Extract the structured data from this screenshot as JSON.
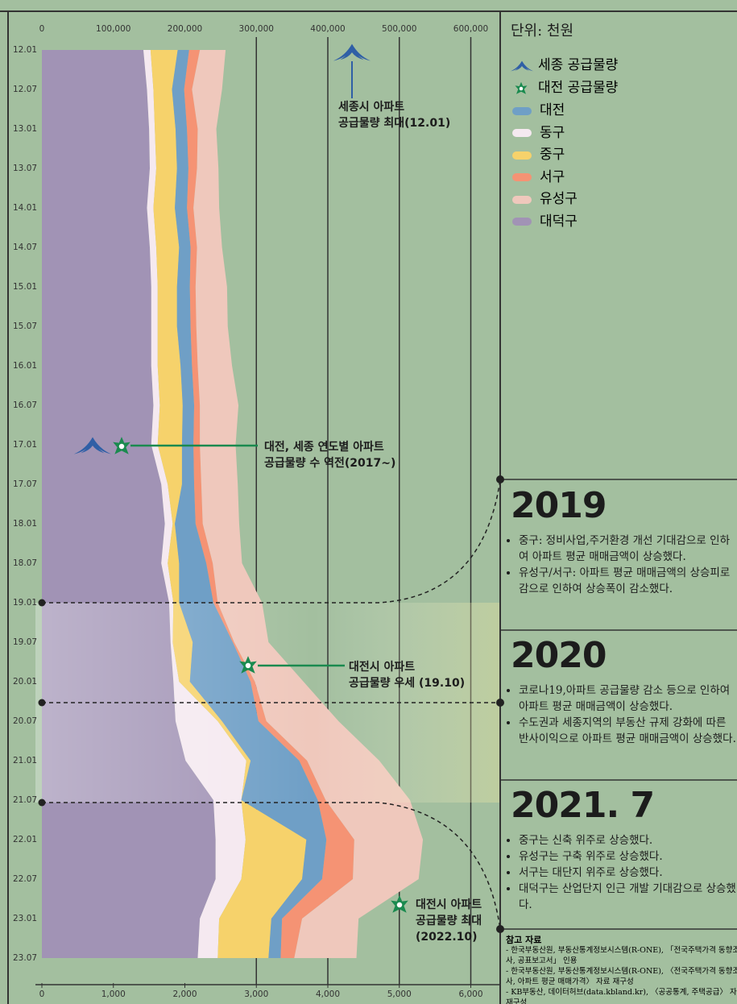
{
  "chart_data": {
    "type": "stacked_area",
    "unit_label": "단위: 천원",
    "categories": [
      "12.01",
      "12.07",
      "13.01",
      "13.07",
      "14.01",
      "14.07",
      "15.01",
      "15.07",
      "16.01",
      "16.07",
      "17.01",
      "17.07",
      "18.01",
      "18.07",
      "19.01",
      "19.07",
      "20.01",
      "20.07",
      "21.01",
      "21.07",
      "22.01",
      "22.07",
      "23.01",
      "23.07"
    ],
    "xlim": [
      0,
      640000
    ],
    "xticks": [
      0,
      {
        "value": 100000,
        "label": "100,000"
      },
      {
        "value": 200000,
        "label": "200,000"
      },
      {
        "value": 300000,
        "label": "300,000"
      },
      {
        "value": 400000,
        "label": "400,000"
      },
      {
        "value": 500000,
        "label": "500,000"
      },
      {
        "value": 600000,
        "label": "600,000"
      }
    ],
    "x2lim": [
      0,
      6400
    ],
    "x2ticks": [
      0,
      {
        "value": 1000,
        "label": "1,000"
      },
      {
        "value": 2000,
        "label": "2,000"
      },
      {
        "value": 3000,
        "label": "3,000"
      },
      {
        "value": 4000,
        "label": "4,000"
      },
      {
        "value": 5000,
        "label": "5,000"
      },
      {
        "value": 6000,
        "label": "6,000"
      }
    ],
    "legend_markers": [
      "세종 공급물량",
      "대전 공급물량"
    ],
    "series": [
      {
        "name": "대전",
        "color": "#6f9fc6",
        "values": [
          16000,
          17000,
          16000,
          16000,
          17000,
          16000,
          18000,
          19000,
          16000,
          16000,
          16000,
          17000,
          29000,
          38000,
          48000,
          56000,
          85000,
          51000,
          68000,
          107000,
          28000,
          28000,
          15000,
          17000
        ]
      },
      {
        "name": "동구",
        "color": "#f5e9f0",
        "values": [
          10000,
          9000,
          8000,
          9000,
          9000,
          9000,
          9000,
          9000,
          9000,
          9000,
          9000,
          9000,
          11000,
          9000,
          6000,
          3000,
          8000,
          59000,
          85000,
          39000,
          42000,
          36000,
          27000,
          28000
        ]
      },
      {
        "name": "중구",
        "color": "#f6d26b",
        "values": [
          38000,
          26000,
          29000,
          29000,
          30000,
          32000,
          27000,
          27000,
          32000,
          32000,
          34000,
          20000,
          3000,
          16000,
          8000,
          28000,
          15000,
          6000,
          6000,
          0,
          85000,
          85000,
          73000,
          71000
        ]
      },
      {
        "name": "서구",
        "color": "#f59374",
        "values": [
          15000,
          11000,
          15000,
          12000,
          9000,
          9000,
          8000,
          8000,
          8000,
          8000,
          9000,
          10000,
          10000,
          9000,
          6000,
          2000,
          6000,
          11000,
          11000,
          11000,
          39000,
          43000,
          28000,
          19000
        ]
      },
      {
        "name": "유성구",
        "color": "#efc8bc",
        "values": [
          36000,
          42000,
          26000,
          30000,
          36000,
          35000,
          44000,
          44000,
          48000,
          54000,
          50000,
          51000,
          51000,
          41000,
          62000,
          48000,
          68000,
          101000,
          101000,
          118000,
          96000,
          92000,
          79000,
          87000
        ]
      },
      {
        "name": "대덕구",
        "color": "#a193b5",
        "values": [
          142000,
          147000,
          150000,
          151000,
          147000,
          151000,
          153000,
          153000,
          153000,
          156000,
          153000,
          167000,
          172000,
          167000,
          178000,
          180000,
          184000,
          187000,
          201000,
          240000,
          243000,
          243000,
          221000,
          218000
        ]
      }
    ],
    "annotations": [
      [
        "세종시 아파트",
        "공급물량 최대(12.01)"
      ],
      [
        "대전, 세종 연도별 아파트",
        "공급물량 수 역전(2017~)"
      ],
      [
        "대전시 아파트",
        "공급물량 우세 (19.10)"
      ],
      [
        "대전시 아파트",
        "공급물량 최대",
        "(2022.10)"
      ]
    ]
  },
  "sections": [
    {
      "year": "2019",
      "bullets": [
        "중구: 정비사업,주거환경 개선 기대감으로 인하여 아파트 평균 매매금액이 상승했다.",
        "유성구/서구: 아파트 평균 매매금액의 상승피로감으로 인하여 상승폭이 감소했다."
      ]
    },
    {
      "year": "2020",
      "bullets": [
        "코로나19,아파트 공급물량 감소 등으로 인하여 아파트 평균 매매금액이 상승했다.",
        "수도권과 세종지역의 부동산 규제 강화에 따른 반사이익으로 아파트 평균 매매금액이 상승했다."
      ]
    },
    {
      "year": "2021. 7",
      "bullets": [
        "중구는 신축 위주로 상승했다.",
        "유성구는 구축 위주로 상승했다.",
        "서구는 대단지 위주로 상승했다.",
        "대덕구는 산업단지 인근 개발 기대감으로 상승했다."
      ]
    }
  ],
  "references": {
    "title": "참고 자료",
    "items": [
      "- 한국부동산원, 부동산통계정보시스템(R-ONE), 「전국주택가격 동향조사, 공표보고서」 인용",
      "- 한국부동산원, 부동산통계정보시스템(R-ONE), 〈전국주택가격 동향조사, 아파트 평균 매매가격〉 자료 재구성",
      "- KB부동산, 데이터허브(data.kbland.kr), 〈공공통계, 주택공급〉 자료 재구성"
    ]
  }
}
